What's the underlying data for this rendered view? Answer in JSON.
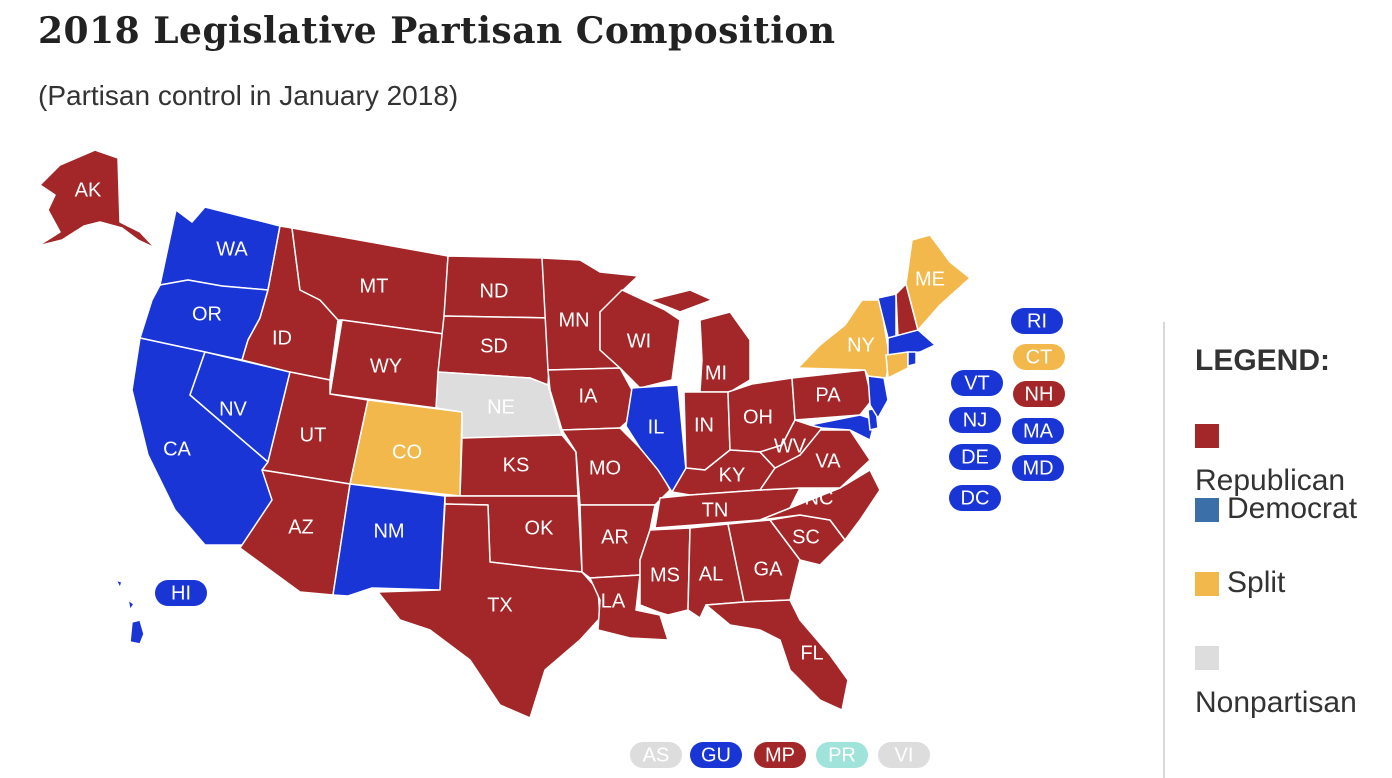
{
  "title": "2018 Legislative Partisan Composition",
  "subtitle": "(Partisan control in January 2018)",
  "colors": {
    "republican": "#a32628",
    "democrat": "#1a35d6",
    "split": "#f2b84b",
    "nonpartisan": "#dddddd",
    "legend_democrat": "#3b6fa8",
    "territory_pr": "#9fe3da"
  },
  "legend": {
    "title": "LEGEND:",
    "items": [
      {
        "key": "republican",
        "label": "Republican"
      },
      {
        "key": "democrat",
        "label": "Democrat"
      },
      {
        "key": "split",
        "label": "Split"
      },
      {
        "key": "nonpartisan",
        "label": "Nonpartisan"
      }
    ]
  },
  "states": [
    {
      "abbr": "AK",
      "party": "republican"
    },
    {
      "abbr": "WA",
      "party": "democrat"
    },
    {
      "abbr": "OR",
      "party": "democrat"
    },
    {
      "abbr": "CA",
      "party": "democrat"
    },
    {
      "abbr": "NV",
      "party": "democrat"
    },
    {
      "abbr": "ID",
      "party": "republican"
    },
    {
      "abbr": "MT",
      "party": "republican"
    },
    {
      "abbr": "WY",
      "party": "republican"
    },
    {
      "abbr": "UT",
      "party": "republican"
    },
    {
      "abbr": "CO",
      "party": "split"
    },
    {
      "abbr": "AZ",
      "party": "republican"
    },
    {
      "abbr": "NM",
      "party": "democrat"
    },
    {
      "abbr": "ND",
      "party": "republican"
    },
    {
      "abbr": "SD",
      "party": "republican"
    },
    {
      "abbr": "NE",
      "party": "nonpartisan"
    },
    {
      "abbr": "KS",
      "party": "republican"
    },
    {
      "abbr": "OK",
      "party": "republican"
    },
    {
      "abbr": "TX",
      "party": "republican"
    },
    {
      "abbr": "MN",
      "party": "republican"
    },
    {
      "abbr": "IA",
      "party": "republican"
    },
    {
      "abbr": "MO",
      "party": "republican"
    },
    {
      "abbr": "AR",
      "party": "republican"
    },
    {
      "abbr": "LA",
      "party": "republican"
    },
    {
      "abbr": "WI",
      "party": "republican"
    },
    {
      "abbr": "IL",
      "party": "democrat"
    },
    {
      "abbr": "MI",
      "party": "republican"
    },
    {
      "abbr": "IN",
      "party": "republican"
    },
    {
      "abbr": "OH",
      "party": "republican"
    },
    {
      "abbr": "KY",
      "party": "republican"
    },
    {
      "abbr": "TN",
      "party": "republican"
    },
    {
      "abbr": "MS",
      "party": "republican"
    },
    {
      "abbr": "AL",
      "party": "republican"
    },
    {
      "abbr": "GA",
      "party": "republican"
    },
    {
      "abbr": "FL",
      "party": "republican"
    },
    {
      "abbr": "SC",
      "party": "republican"
    },
    {
      "abbr": "NC",
      "party": "republican"
    },
    {
      "abbr": "VA",
      "party": "republican"
    },
    {
      "abbr": "WV",
      "party": "republican"
    },
    {
      "abbr": "PA",
      "party": "republican"
    },
    {
      "abbr": "NY",
      "party": "split"
    },
    {
      "abbr": "ME",
      "party": "split"
    },
    {
      "abbr": "HI",
      "party": "democrat"
    }
  ],
  "small_states": [
    {
      "abbr": "RI",
      "party": "democrat"
    },
    {
      "abbr": "CT",
      "party": "split"
    },
    {
      "abbr": "VT",
      "party": "democrat"
    },
    {
      "abbr": "NH",
      "party": "republican"
    },
    {
      "abbr": "NJ",
      "party": "democrat"
    },
    {
      "abbr": "MA",
      "party": "democrat"
    },
    {
      "abbr": "DE",
      "party": "democrat"
    },
    {
      "abbr": "MD",
      "party": "democrat"
    },
    {
      "abbr": "DC",
      "party": "democrat"
    }
  ],
  "territories": [
    {
      "abbr": "AS",
      "party": "nonpartisan"
    },
    {
      "abbr": "GU",
      "party": "democrat"
    },
    {
      "abbr": "MP",
      "party": "republican"
    },
    {
      "abbr": "PR",
      "party": "territory_pr"
    },
    {
      "abbr": "VI",
      "party": "nonpartisan"
    }
  ]
}
